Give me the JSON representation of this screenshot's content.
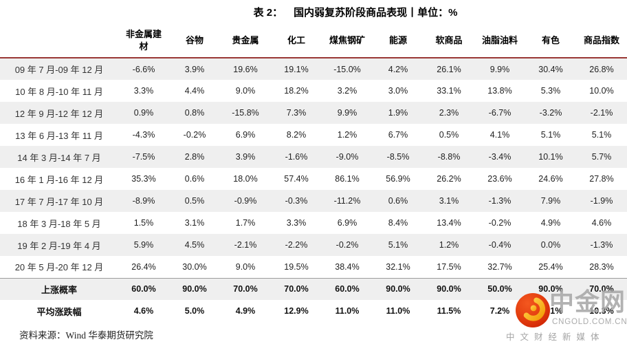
{
  "title": {
    "prefix": "表 2：",
    "text": "国内弱复苏阶段商品表现丨单位：%"
  },
  "table": {
    "columns": [
      "非金属建材",
      "谷物",
      "贵金属",
      "化工",
      "煤焦钢矿",
      "能源",
      "软商品",
      "油脂油料",
      "有色",
      "商品指数"
    ],
    "rows": [
      {
        "label": "09 年 7 月-09 年 12 月",
        "values": [
          "-6.6%",
          "3.9%",
          "19.6%",
          "19.1%",
          "-15.0%",
          "4.2%",
          "26.1%",
          "9.9%",
          "30.4%",
          "26.8%"
        ]
      },
      {
        "label": "10 年 8 月-10 年 11 月",
        "values": [
          "3.3%",
          "4.4%",
          "9.0%",
          "18.2%",
          "3.2%",
          "3.0%",
          "33.1%",
          "13.8%",
          "5.3%",
          "10.0%"
        ]
      },
      {
        "label": "12 年 9 月-12 年 12 月",
        "values": [
          "0.9%",
          "0.8%",
          "-15.8%",
          "7.3%",
          "9.9%",
          "1.9%",
          "2.3%",
          "-6.7%",
          "-3.2%",
          "-2.1%"
        ]
      },
      {
        "label": "13 年 6 月-13 年 11 月",
        "values": [
          "-4.3%",
          "-0.2%",
          "6.9%",
          "8.2%",
          "1.2%",
          "6.7%",
          "0.5%",
          "4.1%",
          "5.1%",
          "5.1%"
        ]
      },
      {
        "label": "14 年 3 月-14 年 7 月",
        "values": [
          "-7.5%",
          "2.8%",
          "3.9%",
          "-1.6%",
          "-9.0%",
          "-8.5%",
          "-8.8%",
          "-3.4%",
          "10.1%",
          "5.7%"
        ]
      },
      {
        "label": "16 年 1 月-16 年 12 月",
        "values": [
          "35.3%",
          "0.6%",
          "18.0%",
          "57.4%",
          "86.1%",
          "56.9%",
          "26.2%",
          "23.6%",
          "24.6%",
          "27.8%"
        ]
      },
      {
        "label": "17 年 7 月-17 年 10 月",
        "values": [
          "-8.9%",
          "0.5%",
          "-0.9%",
          "-0.3%",
          "-11.2%",
          "0.6%",
          "3.1%",
          "-1.3%",
          "7.9%",
          "-1.9%"
        ]
      },
      {
        "label": "18 年 3 月-18 年 5 月",
        "values": [
          "1.5%",
          "3.1%",
          "1.7%",
          "3.3%",
          "6.9%",
          "8.4%",
          "13.4%",
          "-0.2%",
          "4.9%",
          "4.6%"
        ]
      },
      {
        "label": "19 年 2 月-19 年 4 月",
        "values": [
          "5.9%",
          "4.5%",
          "-2.1%",
          "-2.2%",
          "-0.2%",
          "5.1%",
          "1.2%",
          "-0.4%",
          "0.0%",
          "-1.3%"
        ]
      },
      {
        "label": "20 年 5 月-20 年 12 月",
        "values": [
          "26.4%",
          "30.0%",
          "9.0%",
          "19.5%",
          "38.4%",
          "32.1%",
          "17.5%",
          "32.7%",
          "25.4%",
          "28.3%"
        ]
      }
    ],
    "summary_rows": [
      {
        "label": "上涨概率",
        "values": [
          "60.0%",
          "90.0%",
          "70.0%",
          "70.0%",
          "60.0%",
          "90.0%",
          "90.0%",
          "50.0%",
          "90.0%",
          "70.0%"
        ]
      },
      {
        "label": "平均涨跌幅",
        "values": [
          "4.6%",
          "5.0%",
          "4.9%",
          "12.9%",
          "11.0%",
          "11.0%",
          "11.5%",
          "7.2%",
          "11.1%",
          "10.3%"
        ]
      }
    ]
  },
  "source": "资料来源：Wind 华泰期货研究院",
  "watermark": {
    "brand": "中金网",
    "domain": "CNGOLD.COM.CN",
    "tagline": "中文财经新媒体"
  },
  "colors": {
    "header_rule": "#9a3734",
    "row_stripe": "#efefef",
    "summary_rule": "#9b9b9b",
    "watermark_gray": "#a8a8a8",
    "logo_red": "#e23c0e",
    "logo_gold": "#ffb612"
  }
}
